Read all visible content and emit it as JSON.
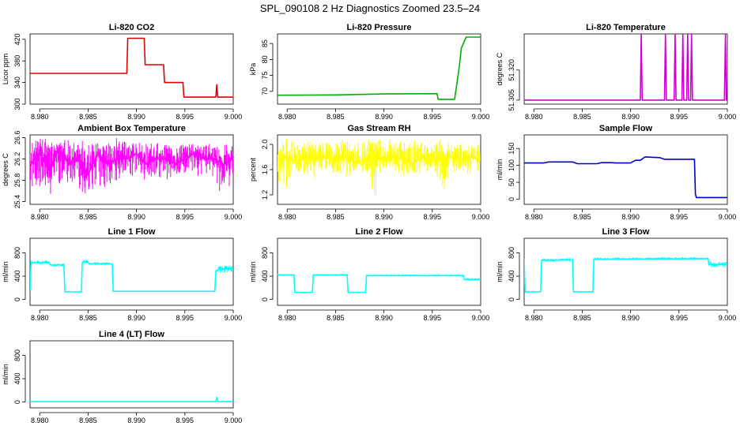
{
  "figure": {
    "title": "SPL_090108  2 Hz Diagnostics Zoomed 23.5–24"
  },
  "chart_data": [
    {
      "id": "co2",
      "type": "line",
      "title": "Li-820 CO2",
      "xlabel": "",
      "ylabel": "Licor ppm",
      "color": "#e00000",
      "xlim": [
        8.979,
        9.0
      ],
      "ylim": [
        300,
        430
      ],
      "xticks": [
        "8.980",
        "8.985",
        "8.990",
        "8.995",
        "9.000"
      ],
      "yticks": [
        "300",
        "340",
        "380",
        "420"
      ],
      "series": [
        {
          "x": [
            8.979,
            8.989,
            8.9891,
            8.9908,
            8.9909,
            8.9928,
            8.9929,
            8.9948,
            8.9949,
            8.9982,
            8.9983,
            8.9984,
            8.9985,
            9.0
          ],
          "y": [
            357,
            357,
            422,
            422,
            373,
            373,
            340,
            340,
            313,
            313,
            336,
            313,
            313,
            313
          ]
        }
      ]
    },
    {
      "id": "pressure",
      "type": "line",
      "title": "Li-820 Pressure",
      "xlabel": "",
      "ylabel": "kPa",
      "color": "#00b000",
      "xlim": [
        8.979,
        9.0
      ],
      "ylim": [
        66,
        88
      ],
      "xticks": [
        "8.980",
        "8.985",
        "8.990",
        "8.995",
        "9.000"
      ],
      "yticks": [
        "70",
        "75",
        "80",
        "85"
      ],
      "series": [
        {
          "x": [
            8.979,
            8.985,
            8.99,
            8.9955,
            8.9956,
            8.9973,
            8.9978,
            8.998,
            8.9985,
            9.0
          ],
          "y": [
            68.8,
            68.9,
            69.2,
            69.3,
            67.5,
            67.5,
            78.0,
            83.5,
            87.0,
            87.0
          ]
        }
      ]
    },
    {
      "id": "temperature",
      "type": "line",
      "title": "Li-820 Temperature",
      "xlabel": "",
      "ylabel": "degrees C",
      "color": "#d000d0",
      "xlim": [
        8.979,
        9.0
      ],
      "ylim": [
        51.303,
        51.338
      ],
      "xticks": [
        "8.980",
        "8.985",
        "8.990",
        "8.995",
        "9.000"
      ],
      "yticks": [
        "51.305",
        "51.320"
      ],
      "series": [
        {
          "x": [
            8.979,
            8.991,
            8.9911,
            8.9912,
            8.9935,
            8.9936,
            8.9937,
            8.9945,
            8.9946,
            8.9947,
            8.9953,
            8.9954,
            8.9955,
            8.9958,
            8.9959,
            8.996,
            8.9962,
            8.9963,
            8.9964,
            8.9997,
            8.9998,
            8.9999,
            9.0
          ],
          "y": [
            51.305,
            51.305,
            51.338,
            51.305,
            51.305,
            51.338,
            51.305,
            51.305,
            51.338,
            51.305,
            51.305,
            51.338,
            51.305,
            51.305,
            51.338,
            51.305,
            51.305,
            51.338,
            51.305,
            51.305,
            51.338,
            51.305,
            51.305
          ]
        }
      ]
    },
    {
      "id": "ambient",
      "type": "line",
      "title": "Ambient Box Temperature",
      "xlabel": "",
      "ylabel": "degrees C",
      "color": "#ff00ff",
      "xlim": [
        8.979,
        9.0
      ],
      "ylim": [
        25.35,
        26.65
      ],
      "xticks": [
        "8.980",
        "8.985",
        "8.990",
        "8.995",
        "9.000"
      ],
      "yticks": [
        "25.4",
        "25.8",
        "26.2",
        "26.6"
      ],
      "series": [
        {
          "x": [
            8.979,
            8.98,
            8.981,
            8.982,
            8.983,
            8.984,
            8.985,
            8.986,
            8.987,
            8.988,
            8.989,
            8.99,
            8.991,
            8.992,
            8.993,
            8.994,
            8.995,
            8.996,
            8.997,
            8.998,
            8.999,
            9.0
          ],
          "y": [
            26.1,
            26.3,
            26.0,
            26.4,
            26.1,
            26.2,
            25.9,
            26.3,
            26.1,
            26.2,
            26.2,
            26.3,
            26.1,
            26.2,
            26.2,
            26.1,
            26.2,
            26.3,
            26.2,
            26.2,
            26.1,
            26.2
          ],
          "band_min": [
            25.7,
            25.6,
            25.5,
            25.7,
            25.6,
            25.6,
            25.5,
            25.7,
            25.6,
            25.7,
            25.8,
            25.8,
            25.8,
            25.9,
            25.8,
            25.9,
            25.9,
            25.8,
            25.8,
            25.8,
            25.4,
            25.8
          ],
          "band_max": [
            26.5,
            26.6,
            26.6,
            26.5,
            26.6,
            26.5,
            26.6,
            26.5,
            26.5,
            26.6,
            26.5,
            26.5,
            26.5,
            26.5,
            26.5,
            26.4,
            26.5,
            26.5,
            26.5,
            26.5,
            26.5,
            26.5
          ]
        }
      ]
    },
    {
      "id": "rh",
      "type": "line",
      "title": "Gas Stream RH",
      "xlabel": "",
      "ylabel": "percent",
      "color": "#ffff00",
      "xlim": [
        8.979,
        9.0
      ],
      "ylim": [
        1.05,
        2.15
      ],
      "xticks": [
        "8.980",
        "8.985",
        "8.990",
        "8.995",
        "9.000"
      ],
      "yticks": [
        "1.2",
        "1.6",
        "2.0"
      ],
      "series": [
        {
          "x": [
            8.979,
            8.98,
            8.981,
            8.982,
            8.983,
            8.984,
            8.985,
            8.986,
            8.987,
            8.988,
            8.989,
            8.99,
            8.991,
            8.992,
            8.993,
            8.994,
            8.995,
            8.996,
            8.997,
            8.998,
            8.999,
            9.0
          ],
          "y": [
            1.75,
            1.8,
            1.7,
            1.8,
            1.75,
            1.8,
            1.75,
            1.8,
            1.7,
            1.75,
            1.8,
            1.75,
            1.8,
            1.75,
            1.7,
            1.8,
            1.75,
            1.75,
            1.8,
            1.75,
            1.8,
            1.75
          ],
          "band_min": [
            1.4,
            1.3,
            1.55,
            1.5,
            1.45,
            1.6,
            1.5,
            1.35,
            1.6,
            1.55,
            1.1,
            1.6,
            1.55,
            1.5,
            1.55,
            1.5,
            1.6,
            1.15,
            1.55,
            1.55,
            1.5,
            1.55
          ],
          "band_max": [
            2.0,
            2.1,
            2.05,
            2.1,
            2.0,
            2.05,
            2.1,
            2.05,
            2.05,
            2.1,
            2.1,
            2.05,
            2.1,
            2.05,
            2.1,
            2.05,
            2.0,
            2.1,
            2.0,
            2.05,
            2.0,
            2.0
          ]
        }
      ]
    },
    {
      "id": "sample",
      "type": "line",
      "title": "Sample Flow",
      "xlabel": "",
      "ylabel": "ml/min",
      "color": "#0000cc",
      "xlim": [
        8.979,
        9.0
      ],
      "ylim": [
        -15,
        190
      ],
      "xticks": [
        "8.980",
        "8.985",
        "8.990",
        "8.995",
        "9.000"
      ],
      "yticks": [
        "0",
        "50",
        "100",
        "150"
      ],
      "series": [
        {
          "x": [
            8.979,
            8.981,
            8.9815,
            8.984,
            8.9845,
            8.9865,
            8.987,
            8.988,
            8.9885,
            8.99,
            8.9905,
            8.991,
            8.9915,
            8.993,
            8.9935,
            8.9966,
            8.9967,
            8.9968,
            9.0
          ],
          "y": [
            107,
            107,
            110,
            110,
            105,
            105,
            108,
            108,
            107,
            107,
            115,
            115,
            125,
            123,
            118,
            118,
            15,
            5,
            5
          ]
        }
      ]
    },
    {
      "id": "line1",
      "type": "line",
      "title": "Line 1 Flow",
      "xlabel": "",
      "ylabel": "ml/min",
      "color": "#00ffff",
      "xlim": [
        8.979,
        9.0
      ],
      "ylim": [
        -100,
        1050
      ],
      "xticks": [
        "8.980",
        "8.985",
        "8.990",
        "8.995",
        "9.000"
      ],
      "yticks": [
        "0",
        "400",
        "800"
      ],
      "series": [
        {
          "x": [
            8.979,
            8.9791,
            8.981,
            8.9811,
            8.9825,
            8.9826,
            8.9843,
            8.9844,
            8.985,
            8.9851,
            8.9875,
            8.9876,
            8.9981,
            8.9982,
            8.9985,
            9.0
          ],
          "y": [
            150,
            630,
            630,
            590,
            590,
            130,
            130,
            640,
            640,
            610,
            610,
            140,
            140,
            480,
            520,
            520
          ],
          "band_min": [
            150,
            600,
            600,
            560,
            560,
            120,
            120,
            610,
            610,
            580,
            580,
            130,
            130,
            440,
            440,
            440
          ],
          "band_max": [
            150,
            670,
            670,
            620,
            620,
            140,
            140,
            680,
            680,
            640,
            640,
            150,
            150,
            520,
            580,
            580
          ]
        }
      ]
    },
    {
      "id": "line2",
      "type": "line",
      "title": "Line 2 Flow",
      "xlabel": "",
      "ylabel": "ml/min",
      "color": "#00ffff",
      "xlim": [
        8.979,
        9.0
      ],
      "ylim": [
        -100,
        1050
      ],
      "xticks": [
        "8.980",
        "8.985",
        "8.990",
        "8.995",
        "9.000"
      ],
      "yticks": [
        "0",
        "400",
        "800"
      ],
      "series": [
        {
          "x": [
            8.979,
            8.9807,
            8.9808,
            8.9826,
            8.9827,
            8.9862,
            8.9863,
            8.9881,
            8.9882,
            8.9982,
            8.9983,
            9.0
          ],
          "y": [
            420,
            420,
            120,
            120,
            420,
            420,
            120,
            120,
            410,
            410,
            340,
            340
          ],
          "band_min": [
            400,
            400,
            110,
            110,
            400,
            400,
            110,
            110,
            390,
            390,
            320,
            320
          ],
          "band_max": [
            440,
            440,
            130,
            130,
            440,
            440,
            130,
            130,
            430,
            430,
            370,
            370
          ]
        }
      ]
    },
    {
      "id": "line3",
      "type": "line",
      "title": "Line 3 Flow",
      "xlabel": "",
      "ylabel": "ml/min",
      "color": "#00ffff",
      "xlim": [
        8.979,
        9.0
      ],
      "ylim": [
        -100,
        1050
      ],
      "xticks": [
        "8.980",
        "8.985",
        "8.990",
        "8.995",
        "9.000"
      ],
      "yticks": [
        "0",
        "400",
        "800"
      ],
      "series": [
        {
          "x": [
            8.979,
            8.9791,
            8.9792,
            8.9807,
            8.9808,
            8.984,
            8.9841,
            8.9861,
            8.9862,
            8.998,
            8.9981,
            9.0
          ],
          "y": [
            700,
            130,
            130,
            130,
            670,
            680,
            130,
            130,
            690,
            700,
            600,
            600
          ],
          "band_min": [
            700,
            120,
            120,
            120,
            640,
            650,
            120,
            120,
            670,
            680,
            540,
            540
          ],
          "band_max": [
            700,
            140,
            140,
            140,
            700,
            710,
            140,
            140,
            720,
            730,
            650,
            650
          ]
        }
      ]
    },
    {
      "id": "line4",
      "type": "line",
      "title": "Line 4 (LT) Flow",
      "xlabel": "",
      "ylabel": "ml/min",
      "color": "#00ffff",
      "xlim": [
        8.979,
        9.0
      ],
      "ylim": [
        -100,
        1050
      ],
      "xticks": [
        "8.980",
        "8.985",
        "8.990",
        "8.995",
        "9.000"
      ],
      "yticks": [
        "0",
        "400",
        "800"
      ],
      "series": [
        {
          "x": [
            8.979,
            8.9982,
            8.9983,
            8.9984,
            9.0
          ],
          "y": [
            5,
            5,
            80,
            5,
            5
          ]
        }
      ]
    }
  ]
}
